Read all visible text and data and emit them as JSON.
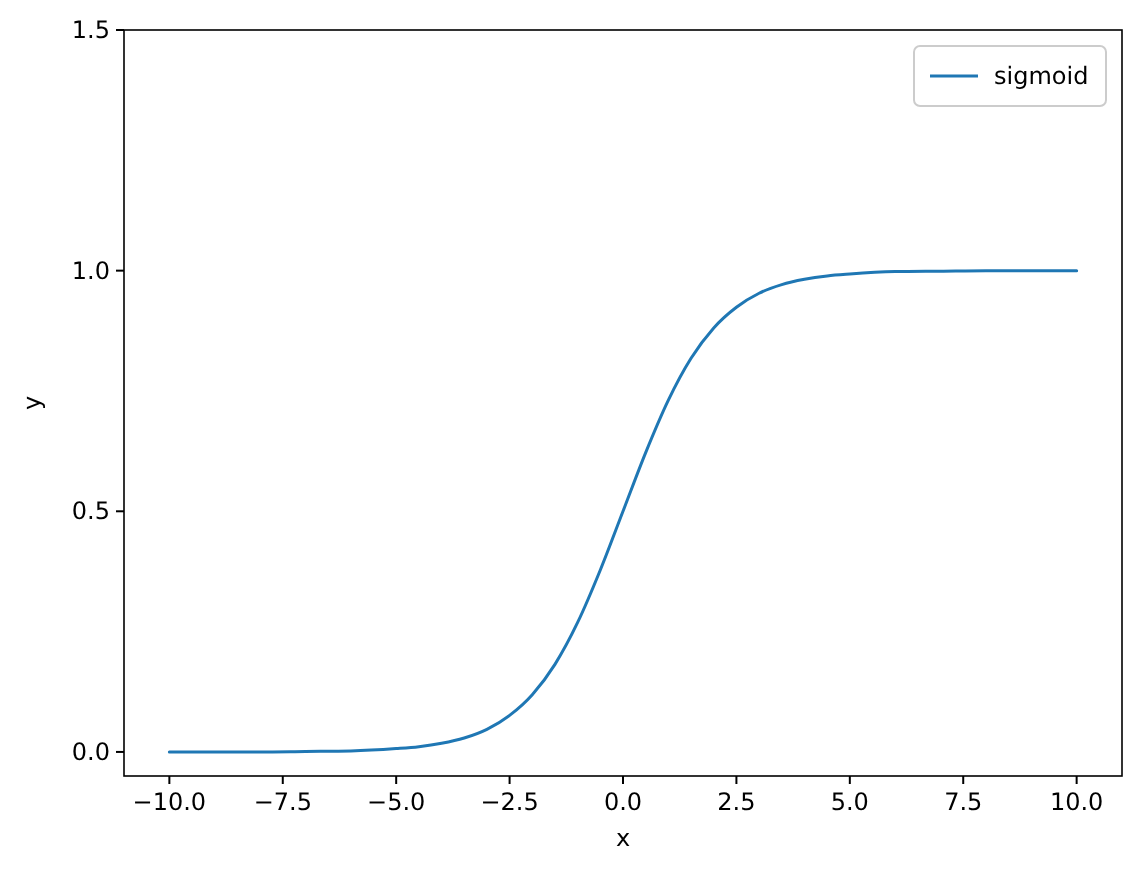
{
  "chart_data": {
    "type": "line",
    "xlabel": "x",
    "ylabel": "y",
    "series": [
      {
        "name": "sigmoid",
        "color": "#1f77b4",
        "x": [
          -10,
          -9,
          -8,
          -7,
          -6,
          -5,
          -4.5,
          -4,
          -3.5,
          -3,
          -2.5,
          -2,
          -1.5,
          -1,
          -0.5,
          0,
          0.5,
          1,
          1.5,
          2,
          2.5,
          3,
          3.5,
          4,
          4.5,
          5,
          6,
          7,
          8,
          9,
          10
        ],
        "values": [
          0.0,
          0.0,
          0.0,
          0.001,
          0.002,
          0.007,
          0.011,
          0.018,
          0.029,
          0.047,
          0.076,
          0.119,
          0.182,
          0.269,
          0.378,
          0.5,
          0.622,
          0.731,
          0.818,
          0.881,
          0.924,
          0.953,
          0.971,
          0.982,
          0.989,
          0.993,
          0.998,
          0.999,
          1.0,
          1.0,
          1.0
        ]
      }
    ],
    "xlim": [
      -11,
      11
    ],
    "ylim": [
      -0.05,
      1.5
    ],
    "xticks": [
      {
        "value": -10,
        "label": "−10.0"
      },
      {
        "value": -7.5,
        "label": "−7.5"
      },
      {
        "value": -5,
        "label": "−5.0"
      },
      {
        "value": -2.5,
        "label": "−2.5"
      },
      {
        "value": 0,
        "label": "0.0"
      },
      {
        "value": 2.5,
        "label": "2.5"
      },
      {
        "value": 5,
        "label": "5.0"
      },
      {
        "value": 7.5,
        "label": "7.5"
      },
      {
        "value": 10,
        "label": "10.0"
      }
    ],
    "yticks": [
      {
        "value": 0,
        "label": "0.0"
      },
      {
        "value": 0.5,
        "label": "0.5"
      },
      {
        "value": 1,
        "label": "1.0"
      },
      {
        "value": 1.5,
        "label": "1.5"
      }
    ],
    "legend": "top right",
    "grid": false,
    "marker": "none",
    "line_style": "solid"
  }
}
